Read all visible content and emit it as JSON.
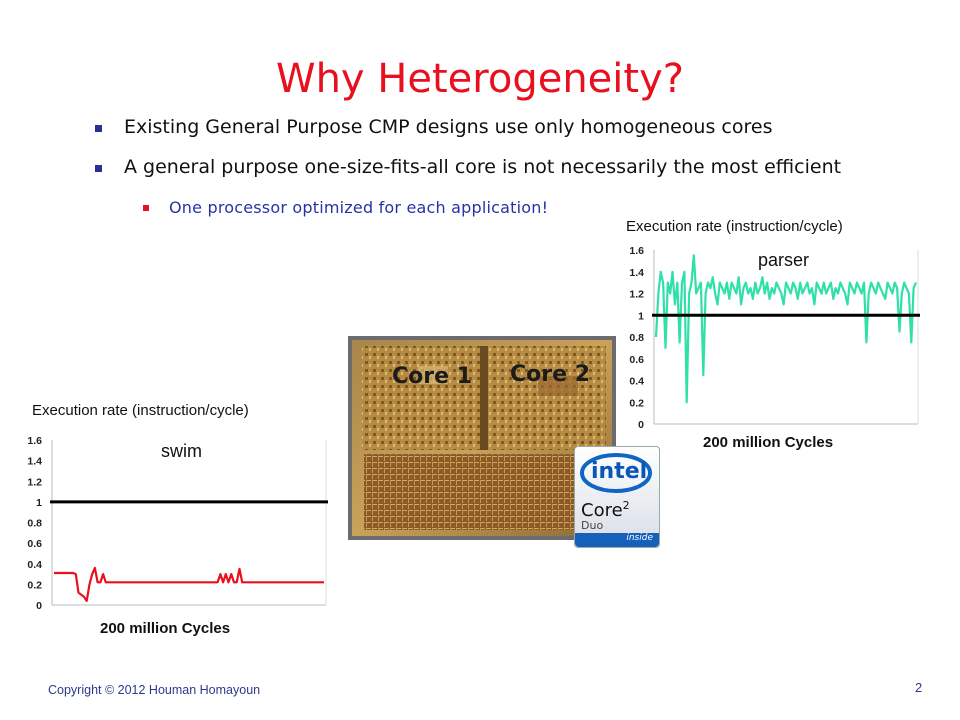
{
  "slide": {
    "title": "Why Heterogeneity?",
    "bullets": [
      "Existing General Purpose CMP designs use only homogeneous cores",
      "A general purpose one-size-fits-all core is not necessarily the most efficient"
    ],
    "sub_bullets": [
      "One processor optimized for each application!"
    ]
  },
  "die_photo": {
    "core1_label": "Core 1",
    "core2_label": "Core 2",
    "logo": {
      "brand": "intel",
      "product": "Core",
      "superscript": "2",
      "variant": "Duo",
      "tagline": "inside"
    }
  },
  "footer": {
    "copyright": "Copyright © 2012 Houman Homayoun",
    "page": "2"
  },
  "chart_data": [
    {
      "type": "line",
      "title": "Execution rate (instruction/cycle)",
      "label": "parser",
      "xlabel": "200 million Cycles",
      "ylabel": "",
      "yticks": [
        "1.6",
        "1.4",
        "1.2",
        "1",
        "0.8",
        "0.6",
        "0.4",
        "0.2",
        "0"
      ],
      "ylim": [
        0,
        1.6
      ],
      "reference_line": 1.0,
      "colors": {
        "series": "#2fe0a8",
        "reference": "#000000"
      },
      "series": [
        {
          "values": [
            0.8,
            1.2,
            1.4,
            1.3,
            0.7,
            1.3,
            1.2,
            1.4,
            1.1,
            1.3,
            0.75,
            1.3,
            1.4,
            0.2,
            1.2,
            1.3,
            1.55,
            1.2,
            1.25,
            1.3,
            0.45,
            1.2,
            1.3,
            1.25,
            1.35,
            1.2,
            1.1,
            1.3,
            1.25,
            1.2,
            1.3,
            1.15,
            1.3,
            1.25,
            1.2,
            1.35,
            1.1,
            1.25,
            1.3,
            1.2,
            1.25,
            1.15,
            1.3,
            1.2,
            1.25,
            1.35,
            1.2,
            1.3,
            1.15,
            1.25,
            1.2,
            1.3,
            1.25,
            1.2,
            1.1,
            1.3,
            1.25,
            1.2,
            1.3,
            1.25,
            1.15,
            1.3,
            1.2,
            1.25,
            1.3,
            1.2,
            1.25,
            1.1,
            1.3,
            1.25,
            1.2,
            1.3,
            1.2,
            1.25,
            1.3,
            1.15,
            1.25,
            1.2,
            1.3,
            1.25,
            1.2,
            1.1,
            1.3,
            1.25,
            1.2,
            1.3,
            1.25,
            1.2,
            1.3,
            0.75,
            1.2,
            1.3,
            1.25,
            1.2,
            1.3,
            1.25,
            1.2,
            1.15,
            1.3,
            1.25,
            1.2,
            1.3,
            1.25,
            0.85,
            1.2,
            1.3,
            1.25,
            1.2,
            0.75,
            1.25,
            1.3
          ]
        }
      ]
    },
    {
      "type": "line",
      "title": "Execution rate (instruction/cycle)",
      "label": "swim",
      "xlabel": "200 million Cycles",
      "ylabel": "",
      "yticks": [
        "1.6",
        "1.4",
        "1.2",
        "1",
        "0.8",
        "0.6",
        "0.4",
        "0.2",
        "0"
      ],
      "ylim": [
        0,
        1.6
      ],
      "reference_line": 1.0,
      "colors": {
        "series": "#e8101e",
        "reference": "#000000"
      },
      "series": [
        {
          "values": [
            0.31,
            0.31,
            0.31,
            0.31,
            0.31,
            0.31,
            0.31,
            0.31,
            0.3,
            0.12,
            0.1,
            0.08,
            0.04,
            0.2,
            0.3,
            0.36,
            0.22,
            0.22,
            0.3,
            0.22,
            0.22,
            0.22,
            0.22,
            0.22,
            0.22,
            0.22,
            0.22,
            0.22,
            0.22,
            0.22,
            0.22,
            0.22,
            0.22,
            0.22,
            0.22,
            0.22,
            0.22,
            0.22,
            0.22,
            0.22,
            0.22,
            0.22,
            0.22,
            0.22,
            0.22,
            0.22,
            0.22,
            0.22,
            0.22,
            0.22,
            0.22,
            0.22,
            0.22,
            0.22,
            0.22,
            0.22,
            0.22,
            0.22,
            0.22,
            0.22,
            0.22,
            0.3,
            0.22,
            0.3,
            0.22,
            0.3,
            0.22,
            0.22,
            0.35,
            0.22,
            0.22,
            0.22,
            0.22,
            0.22,
            0.22,
            0.22,
            0.22,
            0.22,
            0.22,
            0.22,
            0.22,
            0.22,
            0.22,
            0.22,
            0.22,
            0.22,
            0.22,
            0.22,
            0.22,
            0.22,
            0.22,
            0.22,
            0.22,
            0.22,
            0.22,
            0.22,
            0.22,
            0.22,
            0.22,
            0.22
          ]
        }
      ]
    }
  ]
}
